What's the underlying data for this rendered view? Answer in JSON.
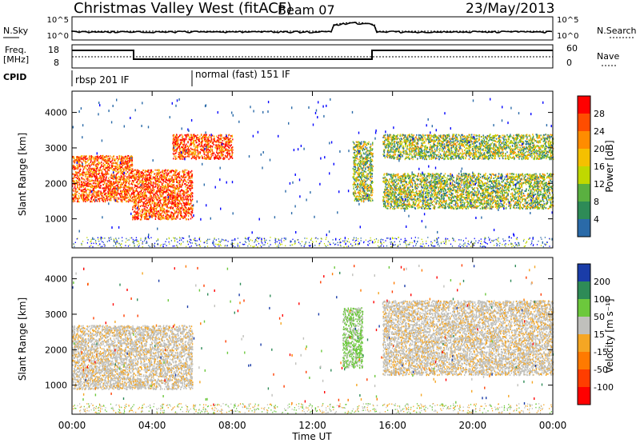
{
  "header": {
    "station": "Christmas Valley West (fitACF)",
    "beam": "Beam 07",
    "date": "23/May/2013"
  },
  "panels": {
    "noise": {
      "left_label": "N.Sky",
      "left_ticks": [
        "10^5",
        "10^0"
      ],
      "right_label": "N.Search",
      "right_ticks": [
        "10^5",
        "10^0"
      ]
    },
    "freq": {
      "left_label_1": "Freq.",
      "left_label_2": "[MHz]",
      "left_ticks": [
        "18",
        "8"
      ],
      "right_label": "Nave",
      "right_ticks": [
        "60",
        "0"
      ]
    },
    "cpid": {
      "label": "CPID",
      "modes": [
        "rbsp 201 IF",
        "normal (fast) 151 IF"
      ]
    }
  },
  "axes": {
    "xlabel": "Time UT",
    "xticks": [
      "00:00",
      "04:00",
      "08:00",
      "12:00",
      "16:00",
      "20:00",
      "00:00"
    ],
    "ylabel": "Slant Range [km]",
    "yticks": [
      "4000",
      "3000",
      "2000",
      "1000"
    ]
  },
  "colorbars": {
    "power": {
      "label": "Power [dB]",
      "ticks": [
        "28",
        "24",
        "20",
        "16",
        "12",
        "8",
        "4"
      ],
      "colors": [
        "#ff0000",
        "#ff4d00",
        "#ff8c00",
        "#f5c000",
        "#c0d800",
        "#5ab040",
        "#2e8b57",
        "#2a6aa8",
        "#0000ff"
      ]
    },
    "velocity": {
      "label": "Velocity [m s⁻¹]",
      "ticks": [
        "200",
        "100",
        "50",
        "15",
        "-15",
        "-50",
        "-100",
        "-200"
      ],
      "colors": [
        "#1a3ca8",
        "#2e8b57",
        "#6cc83c",
        "#c0c0bc",
        "#f5a623",
        "#ff7a00",
        "#ff3d00",
        "#ff0000"
      ]
    }
  },
  "chart_data": {
    "type": "heatmap",
    "x_range_hours": [
      0,
      24
    ],
    "y_range_km": [
      180,
      4600
    ],
    "bands_power": [
      {
        "t": [
          0,
          3
        ],
        "r": [
          1500,
          2800
        ],
        "level": "high"
      },
      {
        "t": [
          3,
          6
        ],
        "r": [
          1000,
          2400
        ],
        "level": "high"
      },
      {
        "t": [
          5,
          8
        ],
        "r": [
          2700,
          3400
        ],
        "level": "high"
      },
      {
        "t": [
          14,
          15
        ],
        "r": [
          1500,
          3200
        ],
        "level": "medium"
      },
      {
        "t": [
          15.5,
          24
        ],
        "r": [
          2700,
          3400
        ],
        "level": "medium"
      },
      {
        "t": [
          15.5,
          24
        ],
        "r": [
          1300,
          2300
        ],
        "level": "medium"
      }
    ],
    "bands_velocity": [
      {
        "t": [
          0,
          6
        ],
        "r": [
          900,
          2700
        ],
        "category": "-15 to 15"
      },
      {
        "t": [
          13.5,
          14.5
        ],
        "r": [
          1500,
          3200
        ],
        "category": "15 to 50"
      },
      {
        "t": [
          15.5,
          24
        ],
        "r": [
          1300,
          3400
        ],
        "category": "-15 to 15"
      }
    ]
  }
}
